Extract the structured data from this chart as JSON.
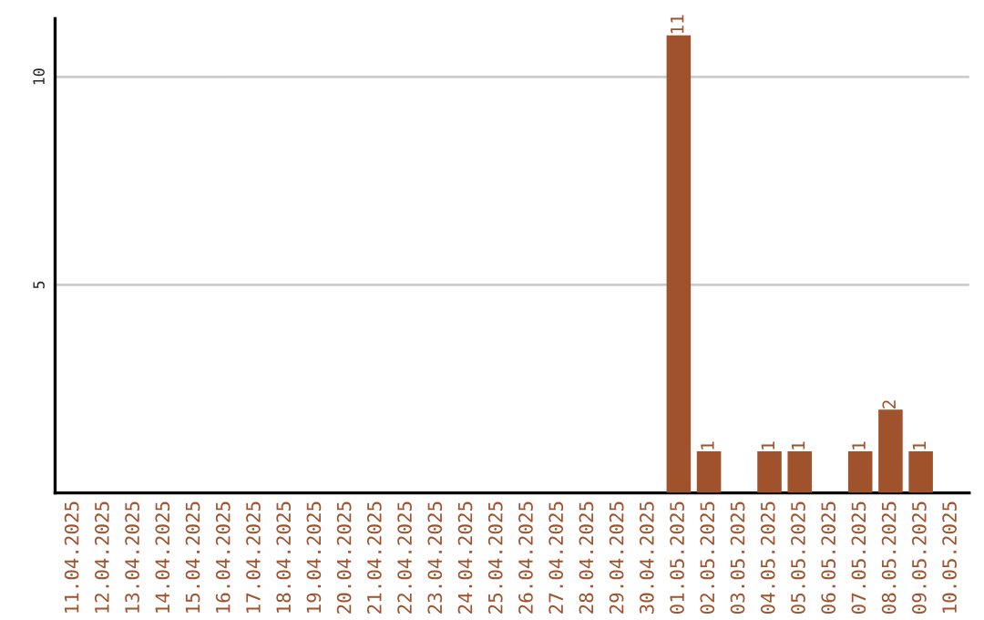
{
  "chart_data": {
    "type": "bar",
    "categories": [
      "11.04.2025",
      "12.04.2025",
      "13.04.2025",
      "14.04.2025",
      "15.04.2025",
      "16.04.2025",
      "17.04.2025",
      "18.04.2025",
      "19.04.2025",
      "20.04.2025",
      "21.04.2025",
      "22.04.2025",
      "23.04.2025",
      "24.04.2025",
      "25.04.2025",
      "26.04.2025",
      "27.04.2025",
      "28.04.2025",
      "29.04.2025",
      "30.04.2025",
      "01.05.2025",
      "02.05.2025",
      "03.05.2025",
      "04.05.2025",
      "05.05.2025",
      "06.05.2025",
      "07.05.2025",
      "08.05.2025",
      "09.05.2025",
      "10.05.2025"
    ],
    "values": [
      0,
      0,
      0,
      0,
      0,
      0,
      0,
      0,
      0,
      0,
      0,
      0,
      0,
      0,
      0,
      0,
      0,
      0,
      0,
      0,
      11,
      1,
      0,
      1,
      1,
      0,
      1,
      2,
      1,
      0
    ],
    "value_labels": [
      null,
      null,
      null,
      null,
      null,
      null,
      null,
      null,
      null,
      null,
      null,
      null,
      null,
      null,
      null,
      null,
      null,
      null,
      null,
      null,
      "11",
      "1",
      null,
      "1",
      "1",
      null,
      "1",
      "2",
      "1",
      null
    ],
    "color": "#a0522d",
    "ylim": [
      0,
      11.4
    ],
    "yticks": [
      5,
      10
    ],
    "grid": "y"
  }
}
